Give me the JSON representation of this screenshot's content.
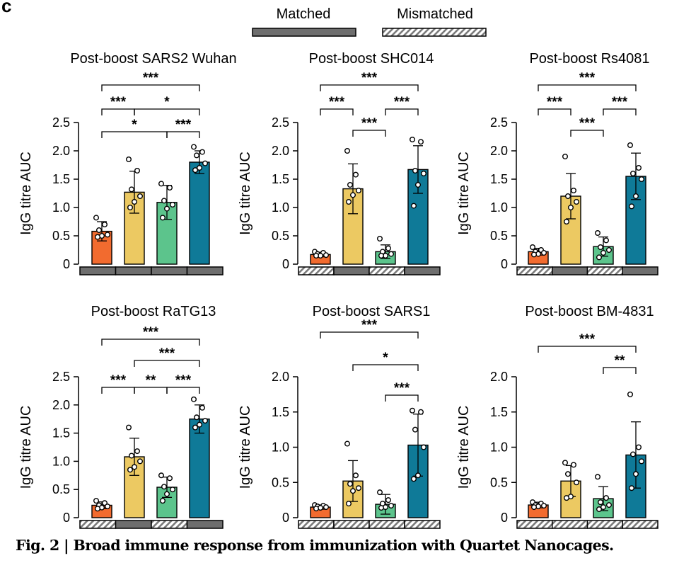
{
  "panel_label": "c",
  "legend": {
    "matched": "Matched",
    "mismatched": "Mismatched",
    "colors": {
      "matched": "#6e6e6e",
      "mismatched_hatch": "#7a7a7a"
    }
  },
  "colors": [
    "#f26b2f",
    "#ecc962",
    "#5cc48c",
    "#0f7a98"
  ],
  "caption": "Fig. 2 | Broad immune response from immunization with Quartet Nanocages.",
  "chart_data": [
    {
      "type": "bar",
      "title": "Post-boost SARS2 Wuhan",
      "ylabel": "IgG titre AUC",
      "ylim": [
        0,
        2.5
      ],
      "yticks": [
        "0",
        "0.5",
        "1.0",
        "1.5",
        "2.0",
        "2.5"
      ],
      "values": [
        0.58,
        1.27,
        1.09,
        1.8
      ],
      "errors": [
        0.17,
        0.37,
        0.3,
        0.2
      ],
      "points": [
        [
          0.82,
          0.7,
          0.6,
          0.52,
          0.5,
          0.48
        ],
        [
          1.85,
          1.65,
          1.32,
          1.2,
          1.1,
          1.0
        ],
        [
          1.42,
          1.35,
          1.12,
          1.05,
          0.98,
          0.82
        ],
        [
          2.07,
          1.98,
          1.92,
          1.78,
          1.7,
          1.66
        ]
      ],
      "condition": [
        "matched",
        "matched",
        "matched",
        "matched"
      ],
      "brackets": [
        {
          "from": 0,
          "to": 3,
          "label": "***"
        },
        {
          "from": 0,
          "to": 1,
          "label": "***"
        },
        {
          "from": 1,
          "to": 3,
          "label": "*"
        },
        {
          "from": 0,
          "to": 2,
          "label": "*"
        },
        {
          "from": 2,
          "to": 3,
          "label": "***"
        }
      ]
    },
    {
      "type": "bar",
      "title": "Post-boost SHC014",
      "ylabel": "IgG titre AUC",
      "ylim": [
        0,
        2.5
      ],
      "yticks": [
        "0",
        "0.5",
        "1.0",
        "1.5",
        "2.0",
        "2.5"
      ],
      "values": [
        0.17,
        1.33,
        0.22,
        1.67
      ],
      "errors": [
        0.04,
        0.44,
        0.12,
        0.42
      ],
      "points": [
        [
          0.22,
          0.2,
          0.18,
          0.16,
          0.15,
          0.15
        ],
        [
          2.0,
          1.58,
          1.4,
          1.3,
          1.22,
          1.1
        ],
        [
          0.45,
          0.28,
          0.22,
          0.18,
          0.15,
          0.15
        ],
        [
          2.2,
          2.16,
          1.65,
          1.6,
          1.4,
          1.03
        ]
      ],
      "condition": [
        "mismatched",
        "matched",
        "mismatched",
        "matched"
      ],
      "brackets": [
        {
          "from": 0,
          "to": 3,
          "label": "***"
        },
        {
          "from": 0,
          "to": 1,
          "label": "***"
        },
        {
          "from": 2,
          "to": 3,
          "label": "***"
        },
        {
          "from": 1,
          "to": 2,
          "label": "***"
        }
      ]
    },
    {
      "type": "bar",
      "title": "Post-boost Rs4081",
      "ylabel": "IgG titre AUC",
      "ylim": [
        0,
        2.5
      ],
      "yticks": [
        "0",
        "0.5",
        "1.0",
        "1.5",
        "2.0",
        "2.5"
      ],
      "values": [
        0.22,
        1.2,
        0.31,
        1.55
      ],
      "errors": [
        0.06,
        0.4,
        0.17,
        0.41
      ],
      "points": [
        [
          0.3,
          0.25,
          0.22,
          0.2,
          0.18,
          0.17
        ],
        [
          1.9,
          1.3,
          1.2,
          1.1,
          1.0,
          0.75
        ],
        [
          0.55,
          0.42,
          0.3,
          0.25,
          0.2,
          0.12
        ],
        [
          2.1,
          1.7,
          1.6,
          1.5,
          1.2,
          1.02
        ]
      ],
      "condition": [
        "mismatched",
        "matched",
        "mismatched",
        "matched"
      ],
      "brackets": [
        {
          "from": 0,
          "to": 3,
          "label": "***"
        },
        {
          "from": 0,
          "to": 1,
          "label": "***"
        },
        {
          "from": 2,
          "to": 3,
          "label": "***"
        },
        {
          "from": 1,
          "to": 2,
          "label": "***"
        }
      ]
    },
    {
      "type": "bar",
      "title": "Post-boost RaTG13",
      "ylabel": "IgG titre AUC",
      "ylim": [
        0,
        2.5
      ],
      "yticks": [
        "0",
        "0.5",
        "1.0",
        "1.5",
        "2.0",
        "2.5"
      ],
      "values": [
        0.22,
        1.08,
        0.54,
        1.75
      ],
      "errors": [
        0.06,
        0.33,
        0.18,
        0.25
      ],
      "points": [
        [
          0.3,
          0.26,
          0.22,
          0.2,
          0.18,
          0.16
        ],
        [
          1.6,
          1.18,
          1.1,
          1.0,
          0.9,
          0.85
        ],
        [
          0.75,
          0.7,
          0.55,
          0.5,
          0.42,
          0.3
        ],
        [
          2.1,
          1.95,
          1.78,
          1.72,
          1.65,
          1.6
        ]
      ],
      "condition": [
        "mismatched",
        "matched",
        "mismatched",
        "matched"
      ],
      "brackets": [
        {
          "from": 0,
          "to": 3,
          "label": "***"
        },
        {
          "from": 1,
          "to": 3,
          "label": "***"
        },
        {
          "from": 0,
          "to": 1,
          "label": "***"
        },
        {
          "from": 1,
          "to": 2,
          "label": "**"
        },
        {
          "from": 2,
          "to": 3,
          "label": "***"
        }
      ]
    },
    {
      "type": "bar",
      "title": "Post-boost SARS1",
      "ylabel": "IgG titre AUC",
      "ylim": [
        0,
        2.0
      ],
      "yticks": [
        "0",
        "0.5",
        "1.0",
        "1.5",
        "2.0"
      ],
      "values": [
        0.15,
        0.52,
        0.19,
        1.03
      ],
      "errors": [
        0.03,
        0.29,
        0.14,
        0.44
      ],
      "points": [
        [
          0.18,
          0.17,
          0.16,
          0.15,
          0.14,
          0.13
        ],
        [
          1.05,
          0.6,
          0.48,
          0.42,
          0.38,
          0.2
        ],
        [
          0.36,
          0.25,
          0.2,
          0.17,
          0.15,
          0.14
        ],
        [
          1.52,
          1.5,
          1.25,
          1.0,
          0.6,
          0.55
        ]
      ],
      "condition": [
        "mismatched",
        "mismatched",
        "mismatched",
        "mismatched"
      ],
      "brackets": [
        {
          "from": 0,
          "to": 3,
          "label": "***"
        },
        {
          "from": 1,
          "to": 3,
          "label": "*"
        },
        {
          "from": 2,
          "to": 3,
          "label": "***"
        }
      ]
    },
    {
      "type": "bar",
      "title": "Post-boost BM-4831",
      "ylabel": "IgG titre AUC",
      "ylim": [
        0,
        2.0
      ],
      "yticks": [
        "0",
        "0.5",
        "1.0",
        "1.5",
        "2.0"
      ],
      "values": [
        0.18,
        0.52,
        0.27,
        0.89
      ],
      "errors": [
        0.04,
        0.22,
        0.17,
        0.47
      ],
      "points": [
        [
          0.22,
          0.2,
          0.18,
          0.17,
          0.16,
          0.15
        ],
        [
          0.78,
          0.75,
          0.62,
          0.5,
          0.3,
          0.28
        ],
        [
          0.58,
          0.28,
          0.22,
          0.18,
          0.15,
          0.12
        ],
        [
          1.75,
          1.0,
          0.9,
          0.8,
          0.62,
          0.42
        ]
      ],
      "condition": [
        "mismatched",
        "mismatched",
        "mismatched",
        "mismatched"
      ],
      "brackets": [
        {
          "from": 0,
          "to": 3,
          "label": "***"
        },
        {
          "from": 2,
          "to": 3,
          "label": "**"
        }
      ]
    }
  ]
}
